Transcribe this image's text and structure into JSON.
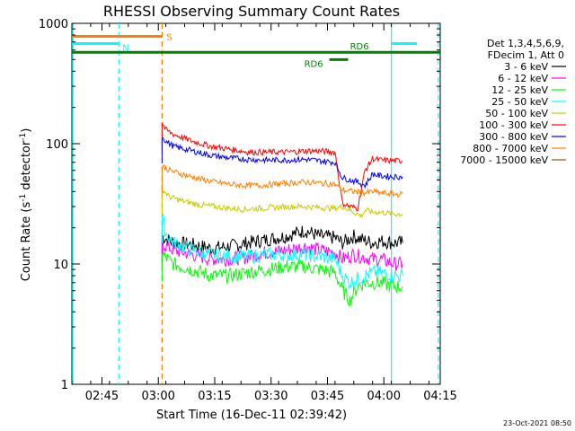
{
  "chart_data": {
    "type": "line",
    "title": "RHESSI Observing Summary Count Rates",
    "xlabel": "Start Time (16-Dec-11 02:39:42)",
    "ylabel_main": "Count Rate (s",
    "ylabel_sup1": "-1",
    "ylabel_mid": " detector",
    "ylabel_sup2": "-1",
    "ylabel_end": ")",
    "y_scale": "log",
    "ylim": [
      1,
      1000
    ],
    "xlim_minutes": [
      -2,
      96
    ],
    "x_ticks": [
      {
        "label": "02:45",
        "minute": 6
      },
      {
        "label": "03:00",
        "minute": 21
      },
      {
        "label": "03:15",
        "minute": 36
      },
      {
        "label": "03:30",
        "minute": 51
      },
      {
        "label": "03:45",
        "minute": 66
      },
      {
        "label": "04:00",
        "minute": 81
      },
      {
        "label": "04:15",
        "minute": 96
      }
    ],
    "y_ticks": [
      {
        "label": "1",
        "value": 1
      },
      {
        "label": "10",
        "value": 10
      },
      {
        "label": "100",
        "value": 100
      },
      {
        "label": "1000",
        "value": 1000
      }
    ],
    "legend": {
      "header_line1": "Det 1,3,4,5,6,9,",
      "header_line2": "FDecim 1, Att 0",
      "placement": "right"
    },
    "series": [
      {
        "name": "3 - 6 keV",
        "color": "#000000",
        "points": [
          [
            22,
            17
          ],
          [
            25,
            15
          ],
          [
            30,
            14.5
          ],
          [
            35,
            13.5
          ],
          [
            40,
            14
          ],
          [
            45,
            15
          ],
          [
            50,
            16
          ],
          [
            55,
            17
          ],
          [
            60,
            19
          ],
          [
            64,
            17
          ],
          [
            68,
            16.5
          ],
          [
            70,
            15
          ],
          [
            73,
            17
          ],
          [
            75,
            16
          ],
          [
            78,
            15
          ],
          [
            80,
            15.5
          ],
          [
            84,
            15
          ],
          [
            86,
            15
          ]
        ]
      },
      {
        "name": "6 - 12 keV",
        "color": "#ff00ff",
        "points": [
          [
            22,
            15
          ],
          [
            25,
            13
          ],
          [
            30,
            12
          ],
          [
            35,
            11
          ],
          [
            40,
            11
          ],
          [
            45,
            11.5
          ],
          [
            50,
            12.5
          ],
          [
            55,
            13
          ],
          [
            60,
            14
          ],
          [
            64,
            13
          ],
          [
            68,
            12.5
          ],
          [
            70,
            11
          ],
          [
            73,
            12
          ],
          [
            75,
            11.5
          ],
          [
            78,
            11
          ],
          [
            80,
            11
          ],
          [
            84,
            10
          ],
          [
            86,
            10
          ]
        ]
      },
      {
        "name": "12 - 25 keV",
        "color": "#00ff00",
        "points": [
          [
            22,
            12
          ],
          [
            25,
            10
          ],
          [
            30,
            9
          ],
          [
            35,
            8
          ],
          [
            40,
            8
          ],
          [
            45,
            8.5
          ],
          [
            50,
            9
          ],
          [
            55,
            9.5
          ],
          [
            60,
            9.5
          ],
          [
            64,
            9
          ],
          [
            68,
            8.5
          ],
          [
            70,
            6
          ],
          [
            72,
            5
          ],
          [
            74,
            6.5
          ],
          [
            76,
            7
          ],
          [
            78,
            7
          ],
          [
            80,
            7
          ],
          [
            84,
            6.5
          ],
          [
            86,
            6.5
          ]
        ]
      },
      {
        "name": "25 - 50 keV",
        "color": "#00ffff",
        "points": [
          [
            22,
            25
          ],
          [
            23,
            18
          ],
          [
            25,
            15
          ],
          [
            30,
            13
          ],
          [
            35,
            12
          ],
          [
            40,
            11.5
          ],
          [
            45,
            11.5
          ],
          [
            50,
            12
          ],
          [
            55,
            12
          ],
          [
            60,
            12
          ],
          [
            64,
            11.5
          ],
          [
            68,
            11
          ],
          [
            70,
            8
          ],
          [
            72,
            7
          ],
          [
            74,
            7.5
          ],
          [
            76,
            8
          ],
          [
            78,
            8.5
          ],
          [
            80,
            8.5
          ],
          [
            84,
            8
          ],
          [
            86,
            8
          ]
        ]
      },
      {
        "name": "50 - 100 keV",
        "color": "#cccc00",
        "points": [
          [
            22,
            42
          ],
          [
            24,
            36
          ],
          [
            28,
            33
          ],
          [
            32,
            31
          ],
          [
            36,
            30
          ],
          [
            40,
            29
          ],
          [
            44,
            28.5
          ],
          [
            48,
            29
          ],
          [
            52,
            29.5
          ],
          [
            56,
            30
          ],
          [
            60,
            30
          ],
          [
            64,
            29.5
          ],
          [
            68,
            29
          ],
          [
            70,
            30
          ],
          [
            73,
            27
          ],
          [
            75,
            25
          ],
          [
            76,
            28
          ],
          [
            78,
            27
          ],
          [
            80,
            27
          ],
          [
            84,
            26
          ],
          [
            86,
            26
          ]
        ]
      },
      {
        "name": "100 - 300 keV",
        "color": "#ff0000",
        "points": [
          [
            22,
            150
          ],
          [
            23,
            130
          ],
          [
            25,
            120
          ],
          [
            30,
            105
          ],
          [
            35,
            95
          ],
          [
            40,
            90
          ],
          [
            45,
            85
          ],
          [
            50,
            85
          ],
          [
            55,
            85
          ],
          [
            60,
            87
          ],
          [
            64,
            87
          ],
          [
            68,
            85
          ],
          [
            70,
            32
          ],
          [
            72,
            30
          ],
          [
            74,
            29
          ],
          [
            76,
            60
          ],
          [
            78,
            75
          ],
          [
            80,
            73
          ],
          [
            84,
            72
          ],
          [
            86,
            72
          ]
        ]
      },
      {
        "name": "300 - 800 keV",
        "color": "#0000ff",
        "points": [
          [
            22,
            115
          ],
          [
            23,
            105
          ],
          [
            25,
            95
          ],
          [
            30,
            87
          ],
          [
            35,
            80
          ],
          [
            40,
            76
          ],
          [
            45,
            74
          ],
          [
            50,
            73
          ],
          [
            55,
            73
          ],
          [
            60,
            74
          ],
          [
            64,
            72
          ],
          [
            68,
            70
          ],
          [
            70,
            52
          ],
          [
            72,
            50
          ],
          [
            74,
            48
          ],
          [
            76,
            45
          ],
          [
            78,
            56
          ],
          [
            80,
            54
          ],
          [
            84,
            53
          ],
          [
            86,
            53
          ]
        ]
      },
      {
        "name": "800 - 7000 keV",
        "color": "#ff8000",
        "points": [
          [
            22,
            65
          ],
          [
            24,
            60
          ],
          [
            28,
            55
          ],
          [
            32,
            51
          ],
          [
            36,
            48
          ],
          [
            40,
            46
          ],
          [
            44,
            45
          ],
          [
            48,
            45
          ],
          [
            52,
            46
          ],
          [
            56,
            47
          ],
          [
            60,
            48
          ],
          [
            64,
            47
          ],
          [
            68,
            46
          ],
          [
            70,
            41
          ],
          [
            73,
            40
          ],
          [
            76,
            39
          ],
          [
            78,
            40
          ],
          [
            80,
            39
          ],
          [
            84,
            38
          ],
          [
            86,
            38
          ]
        ]
      },
      {
        "name": "7000 - 15000 keV",
        "color": "#806000",
        "points": []
      }
    ],
    "annotations": [
      {
        "text": "S",
        "color": "#ff8000",
        "kind": "bar",
        "x_start": -2,
        "x_end": 22,
        "y": 780
      },
      {
        "text": "N",
        "color": "#00ffff",
        "kind": "bar",
        "x_start": -2,
        "x_end": 10.5,
        "y": 680
      },
      {
        "text": "RD6",
        "color": "#008000",
        "kind": "bar",
        "x_start": 66.5,
        "x_end": 71.5,
        "y": 500
      },
      {
        "text": "RD6",
        "color": "#008000",
        "kind": "bar",
        "x_start": -2,
        "x_end": 96,
        "y": 575
      }
    ],
    "vertical_markers": [
      {
        "minute": 10.5,
        "color": "#00ffff",
        "style": "dashed"
      },
      {
        "minute": 22,
        "color": "#ff8000",
        "style": "dashed"
      },
      {
        "minute": 83,
        "color": "#00ffff",
        "style": "solid"
      },
      {
        "minute": 95.5,
        "color": "#00ffff",
        "style": "dashed"
      }
    ]
  },
  "footer": {
    "timestamp": "23-Oct-2021 08:50"
  }
}
